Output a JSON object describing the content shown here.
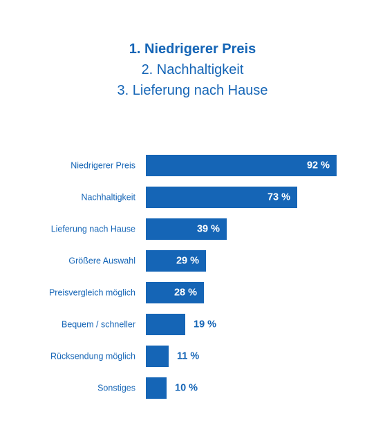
{
  "ranking": {
    "line1": "1. Niedrigerer Preis",
    "line2": "2. Nachhaltigkeit",
    "line3": "3. Lieferung nach Hause"
  },
  "chart_data": {
    "type": "bar",
    "orientation": "horizontal",
    "categories": [
      "Niedrigerer Preis",
      "Nachhaltigkeit",
      "Lieferung nach Hause",
      "Größere Auswahl",
      "Preisvergleich möglich",
      "Bequem / schneller",
      "Rücksendung möglich",
      "Sonstiges"
    ],
    "values": [
      92,
      73,
      39,
      29,
      28,
      19,
      11,
      10
    ],
    "value_labels": [
      "92 %",
      "73 %",
      "39 %",
      "29 %",
      "28 %",
      "19 %",
      "11 %",
      "10 %"
    ],
    "xlim": [
      0,
      100
    ],
    "grid": false,
    "legend": "none",
    "colors": {
      "bar": "#1565b6",
      "label": "#1565b6",
      "value_inside": "#ffffff",
      "value_outside": "#1565b6"
    }
  }
}
